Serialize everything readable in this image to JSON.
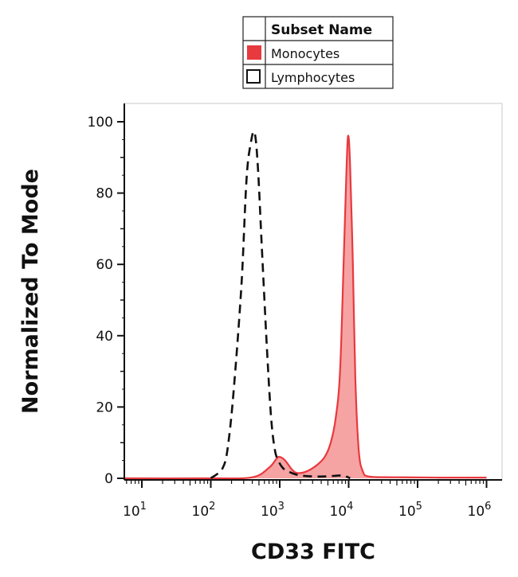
{
  "chart_data": {
    "type": "area",
    "xlabel": "CD33 FITC",
    "ylabel": "Normalized To Mode",
    "xscale": "log",
    "xlim": [
      10,
      1000000
    ],
    "ylim": [
      0,
      100
    ],
    "yticks": [
      0,
      20,
      40,
      60,
      80,
      100
    ],
    "xticks": [
      {
        "value": 10,
        "base": "10",
        "exp": "1"
      },
      {
        "value": 100,
        "base": "10",
        "exp": "2"
      },
      {
        "value": 1000,
        "base": "10",
        "exp": "3"
      },
      {
        "value": 10000,
        "base": "10",
        "exp": "4"
      },
      {
        "value": 100000,
        "base": "10",
        "exp": "5"
      },
      {
        "value": 1000000,
        "base": "10",
        "exp": "6"
      }
    ],
    "legend": {
      "title": "Subset Name",
      "placement": "top"
    },
    "series": [
      {
        "name": "Monocytes",
        "color": "#e8393f",
        "fill": "#f6a3a3",
        "style": "solid-filled",
        "x": [
          5,
          100,
          400,
          700,
          900,
          1000,
          1200,
          1500,
          1800,
          2500,
          3500,
          4500,
          5500,
          6500,
          7500,
          8500,
          9200,
          9800,
          10500,
          11500,
          12500,
          14000,
          16000,
          20000,
          50000,
          200000,
          1000000
        ],
        "y": [
          0,
          0,
          0.3,
          3,
          5.5,
          6,
          5,
          2.5,
          1.5,
          2,
          3.8,
          6,
          10,
          17,
          30,
          62,
          84,
          96,
          88,
          60,
          28,
          8,
          2,
          0.5,
          0.3,
          0.2,
          0.2
        ]
      },
      {
        "name": "Lymphocytes",
        "color": "#111111",
        "style": "dashed",
        "x": [
          100,
          150,
          180,
          220,
          280,
          330,
          380,
          430,
          480,
          550,
          650,
          750,
          850,
          950,
          1100,
          1300,
          2000,
          4000,
          8000,
          9500,
          10500
        ],
        "y": [
          0,
          3,
          10,
          27,
          55,
          84,
          94,
          97,
          88,
          65,
          37,
          17,
          8,
          5,
          3,
          2,
          0.8,
          0.5,
          0.8,
          0.4,
          0
        ]
      }
    ]
  }
}
